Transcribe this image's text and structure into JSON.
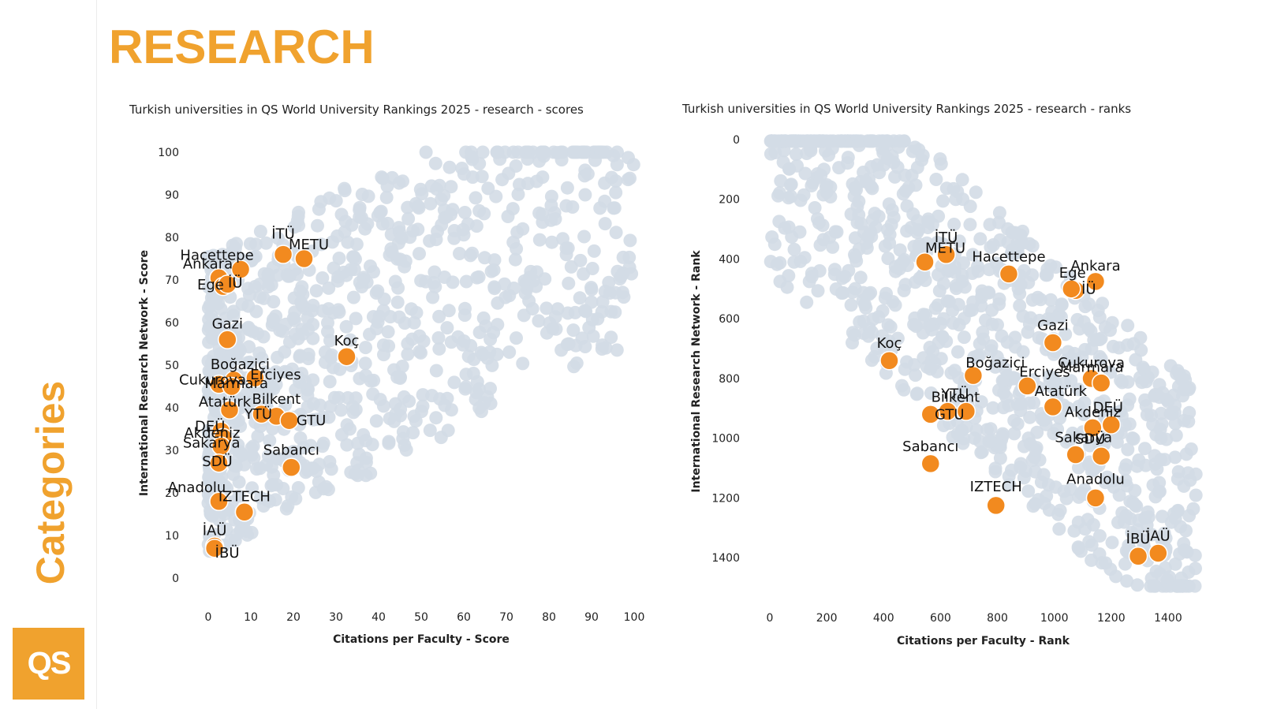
{
  "page": {
    "title": "RESEARCH",
    "side_label": "Categories",
    "logo_text": "QS",
    "brand_color": "#F0A22E"
  },
  "colors": {
    "highlight": "#F28A1F",
    "background_points": "#D3DCE6"
  },
  "chart_data": [
    {
      "type": "scatter",
      "title": "Turkish universities in QS World University Rankings 2025 - research - scores",
      "xlabel": "Citations per Faculty - Score",
      "ylabel": "International Research Network - Score",
      "xlim": [
        0,
        100
      ],
      "ylim": [
        0,
        100
      ],
      "xticks": [
        0,
        10,
        20,
        30,
        40,
        50,
        60,
        70,
        80,
        90,
        100
      ],
      "yticks": [
        0,
        10,
        20,
        30,
        40,
        50,
        60,
        70,
        80,
        90,
        100
      ],
      "grid": false,
      "background_series": "other universities (unlabeled, grey)",
      "series": [
        {
          "highlighted": true,
          "points": [
            {
              "name": "İTÜ",
              "x": 17.6,
              "y": 76
            },
            {
              "name": "METU",
              "x": 22.5,
              "y": 75
            },
            {
              "name": "Hacettepe",
              "x": 7.6,
              "y": 72.5
            },
            {
              "name": "Ankara",
              "x": 2.5,
              "y": 70.5
            },
            {
              "name": "Ege",
              "x": 3.5,
              "y": 68.5
            },
            {
              "name": "İÜ",
              "x": 4.5,
              "y": 69
            },
            {
              "name": "Gazi",
              "x": 4.5,
              "y": 56
            },
            {
              "name": "Koç",
              "x": 32.5,
              "y": 52
            },
            {
              "name": "Boğaziçi",
              "x": 6.0,
              "y": 46.5
            },
            {
              "name": "Cukurova",
              "x": 2.5,
              "y": 45.5
            },
            {
              "name": "Erciyes",
              "x": 11.0,
              "y": 47
            },
            {
              "name": "Marmara",
              "x": 5.5,
              "y": 45
            },
            {
              "name": "Bilkent",
              "x": 16.0,
              "y": 38
            },
            {
              "name": "Atatürk",
              "x": 5.0,
              "y": 39.5
            },
            {
              "name": "YTÜ",
              "x": 12.5,
              "y": 38.5
            },
            {
              "name": "GTU",
              "x": 19.0,
              "y": 37
            },
            {
              "name": "DEÜ",
              "x": 3.0,
              "y": 34.5
            },
            {
              "name": "Akdeniz",
              "x": 3.5,
              "y": 33
            },
            {
              "name": "Sakarya",
              "x": 3.0,
              "y": 31
            },
            {
              "name": "Sabancı",
              "x": 19.5,
              "y": 26
            },
            {
              "name": "SDÜ",
              "x": 2.5,
              "y": 27
            },
            {
              "name": "Anadolu",
              "x": 2.5,
              "y": 18
            },
            {
              "name": "IZTECH",
              "x": 8.5,
              "y": 15.5
            },
            {
              "name": "İAÜ",
              "x": 1.5,
              "y": 7.5
            },
            {
              "name": "İBÜ",
              "x": 1.5,
              "y": 7
            }
          ]
        }
      ]
    },
    {
      "type": "scatter",
      "title": "Turkish universities in QS World University Rankings 2025 - research - ranks",
      "xlabel": "Citations per Faculty - Rank",
      "ylabel": "International Research Network - Rank",
      "xlim": [
        1500,
        0
      ],
      "ylim": [
        0,
        1500
      ],
      "x_reversed": true,
      "y_reversed": true,
      "xticks": [
        1400,
        1200,
        1000,
        800,
        600,
        400,
        200,
        0
      ],
      "yticks": [
        0,
        200,
        400,
        600,
        800,
        1000,
        1200,
        1400
      ],
      "grid": false,
      "background_series": "other universities (unlabeled, grey)",
      "series": [
        {
          "highlighted": true,
          "points": [
            {
              "name": "İTÜ",
              "x": 620,
              "y": 385
            },
            {
              "name": "METU",
              "x": 545,
              "y": 410
            },
            {
              "name": "Hacettepe",
              "x": 840,
              "y": 450
            },
            {
              "name": "Ankara",
              "x": 1145,
              "y": 475
            },
            {
              "name": "Ege",
              "x": 1075,
              "y": 505
            },
            {
              "name": "İÜ",
              "x": 1060,
              "y": 500
            },
            {
              "name": "Gazi",
              "x": 995,
              "y": 680
            },
            {
              "name": "Koç",
              "x": 420,
              "y": 740
            },
            {
              "name": "Boğaziçi",
              "x": 715,
              "y": 790
            },
            {
              "name": "Cukurova",
              "x": 1130,
              "y": 800
            },
            {
              "name": "Erciyes",
              "x": 905,
              "y": 825
            },
            {
              "name": "Marmara",
              "x": 1165,
              "y": 815
            },
            {
              "name": "Atatürk",
              "x": 995,
              "y": 895
            },
            {
              "name": "YTÜ",
              "x": 690,
              "y": 910
            },
            {
              "name": "Bilkent",
              "x": 625,
              "y": 910
            },
            {
              "name": "GTU",
              "x": 565,
              "y": 920
            },
            {
              "name": "DEÜ",
              "x": 1200,
              "y": 955
            },
            {
              "name": "Akdeniz",
              "x": 1135,
              "y": 965
            },
            {
              "name": "Sakarya",
              "x": 1075,
              "y": 1055
            },
            {
              "name": "SDÜ",
              "x": 1165,
              "y": 1060
            },
            {
              "name": "Sabancı",
              "x": 565,
              "y": 1085
            },
            {
              "name": "Anadolu",
              "x": 1145,
              "y": 1200
            },
            {
              "name": "IZTECH",
              "x": 795,
              "y": 1225
            },
            {
              "name": "İAÜ",
              "x": 1365,
              "y": 1385
            },
            {
              "name": "İBÜ",
              "x": 1295,
              "y": 1395
            }
          ]
        }
      ]
    }
  ]
}
